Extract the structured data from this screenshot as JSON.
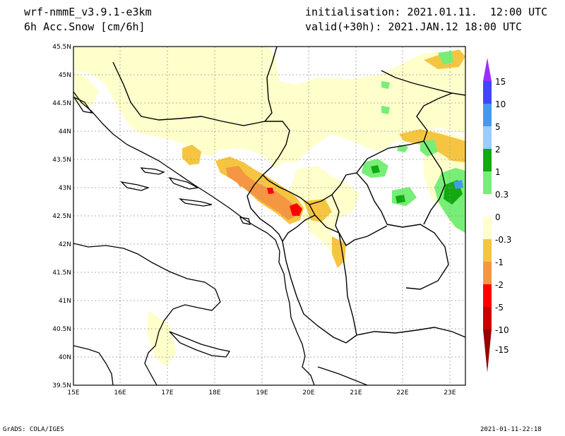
{
  "header": {
    "model": "wrf-nmmE_v3.9.1-e3km",
    "field": "6h Acc.Snow [cm/6h]",
    "initialisation": "initialisation: 2021.01.11.  12:00 UTC",
    "valid": "valid(+30h): 2021.JAN.12 18:00 UTC"
  },
  "footer": {
    "left": "GrADS: COLA/IGES",
    "right": "2021-01-11-22:18"
  },
  "map": {
    "lat_labels": [
      "45.5N",
      "45N",
      "44.5N",
      "44N",
      "43.5N",
      "43N",
      "42.5N",
      "42N",
      "41.5N",
      "41N",
      "40.5N",
      "40N",
      "39.5N"
    ],
    "lon_labels": [
      "15E",
      "16E",
      "17E",
      "18E",
      "19E",
      "20E",
      "21E",
      "22E",
      "23E"
    ]
  },
  "colorbar": {
    "labels": [
      "15",
      "10",
      "5",
      "2",
      "1",
      "0.3",
      "0",
      "-0.3",
      "-1",
      "-2",
      "-5",
      "-10",
      "-15"
    ],
    "colors": [
      "#9a30ff",
      "#4444ff",
      "#4499ee",
      "#99ccff",
      "#11aa11",
      "#77ee77",
      "#ffffff",
      "#ffffcc",
      "#f5c542",
      "#f59642",
      "#ff0000",
      "#cc0000",
      "#990000"
    ]
  }
}
